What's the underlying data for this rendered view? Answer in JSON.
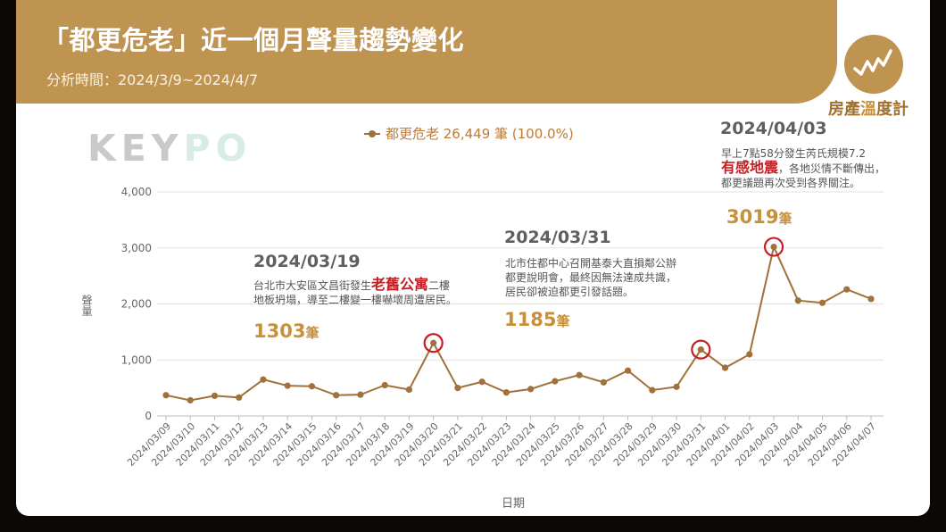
{
  "header": {
    "title": "「都更危老」近一個月聲量趨勢變化",
    "period": "分析時間：2024/3/9~2024/4/7"
  },
  "brand": {
    "logo_icon": "zigzag-trend-icon",
    "name_part1": "房產",
    "name_part2": "溫",
    "name_part3": "度計",
    "watermark_part1": "KEY",
    "watermark_part2": "PO"
  },
  "legend": {
    "label": "都更危老 26,449 筆 (100.0%)"
  },
  "axes": {
    "ylabel": "聲量",
    "xlabel": "日期"
  },
  "annotations": {
    "a1": {
      "date": "2024/03/19",
      "text1": "台北市大安區文昌街發生",
      "highlight": "老舊公寓",
      "text2": "二樓",
      "text3": "地板坍塌，導至二樓變一樓嚇壞周遭居民。",
      "value": "1303",
      "unit": "筆"
    },
    "a2": {
      "date": "2024/03/31",
      "line1": "北市住都中心召開基泰大直損鄰公辦",
      "line2": "都更說明會，最終因無法達成共識，",
      "line3": "居民卻被迫都更引發話題。",
      "value": "1185",
      "unit": "筆"
    },
    "a3": {
      "date": "2024/04/03",
      "line1": "早上7點58分發生芮氏規模7.2",
      "highlight": "有感地震",
      "line2": "，各地災情不斷傳出，",
      "line3": "都更議題再次受到各界關注。",
      "value": "3019",
      "unit": "筆"
    }
  },
  "colors": {
    "brand": "#bf9350",
    "line": "#a0713a",
    "highlight_circle": "#c41e24",
    "value_text": "#c8903a"
  },
  "chart_data": {
    "type": "line",
    "x": [
      "2024/03/09",
      "2024/03/10",
      "2024/03/11",
      "2024/03/12",
      "2024/03/13",
      "2024/03/14",
      "2024/03/15",
      "2024/03/16",
      "2024/03/17",
      "2024/03/18",
      "2024/03/19",
      "2024/03/20",
      "2024/03/21",
      "2024/03/22",
      "2024/03/23",
      "2024/03/24",
      "2024/03/25",
      "2024/03/26",
      "2024/03/27",
      "2024/03/28",
      "2024/03/29",
      "2024/03/30",
      "2024/03/31",
      "2024/04/01",
      "2024/04/02",
      "2024/04/03",
      "2024/04/04",
      "2024/04/05",
      "2024/04/06",
      "2024/04/07"
    ],
    "series": [
      {
        "name": "都更危老 26,449 筆 (100.0%)",
        "values": [
          370,
          280,
          360,
          330,
          650,
          540,
          530,
          370,
          380,
          550,
          470,
          1303,
          500,
          610,
          420,
          480,
          620,
          730,
          600,
          810,
          460,
          520,
          1185,
          860,
          1100,
          3019,
          2060,
          2020,
          2260,
          2090
        ]
      }
    ],
    "highlighted_points": [
      "2024/03/20",
      "2024/03/31",
      "2024/04/03"
    ],
    "yticks": [
      "0",
      "1,000",
      "2,000",
      "3,000",
      "4,000"
    ],
    "ylim": [
      0,
      4000
    ],
    "xlabel": "日期",
    "ylabel": "聲量",
    "grid": "horizontal",
    "legend_position": "top-center"
  }
}
